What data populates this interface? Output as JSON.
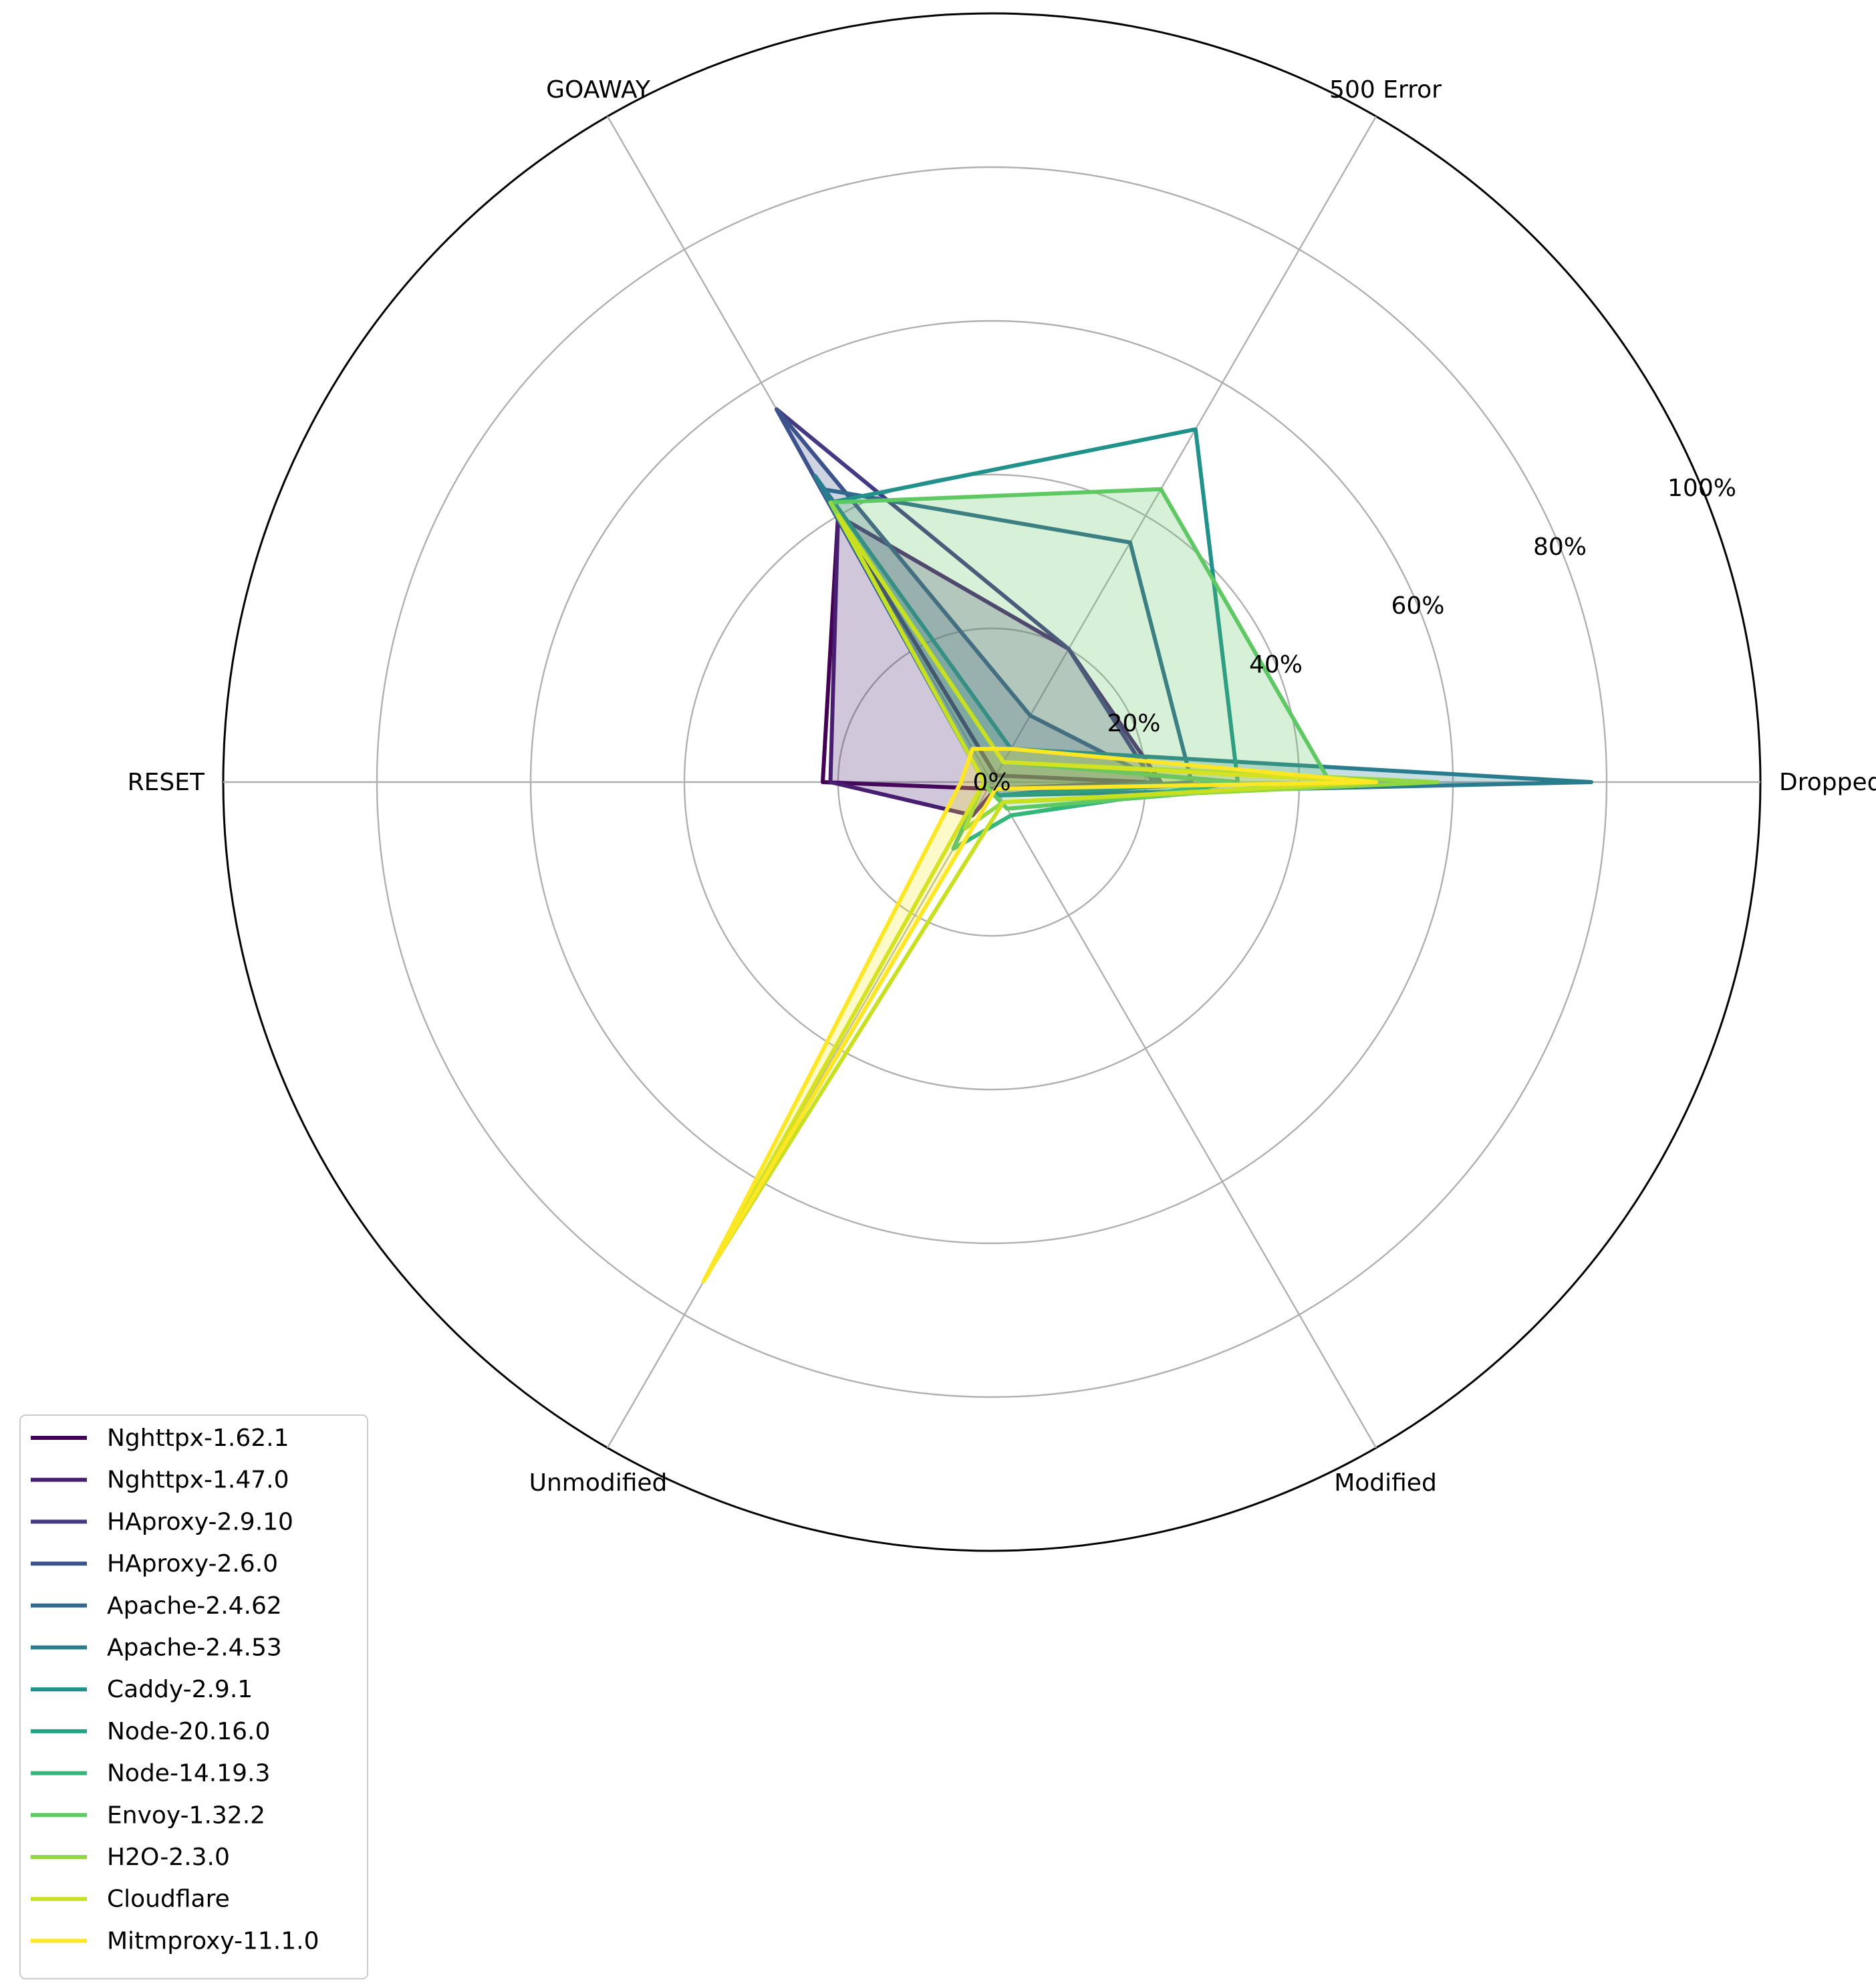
{
  "chart_data": {
    "type": "radar",
    "axes": [
      "Dropped",
      "500 Error",
      "GOAWAY",
      "RESET",
      "Unmodified",
      "Modified"
    ],
    "radial_ticks": [
      "0%",
      "20%",
      "40%",
      "60%",
      "80%",
      "100%"
    ],
    "radial_tick_values": [
      0,
      20,
      40,
      60,
      80,
      100
    ],
    "rlim": [
      0,
      100
    ],
    "grid": true,
    "legend_position": "lower-left",
    "series": [
      {
        "name": "Nghttpx-1.62.1",
        "color": "#440154",
        "values": [
          20,
          1,
          40,
          22,
          1,
          1
        ],
        "filled": false
      },
      {
        "name": "Nghttpx-1.47.0",
        "color": "#481f70",
        "values": [
          22,
          20,
          40,
          21,
          5,
          1
        ],
        "filled": true
      },
      {
        "name": "HAproxy-2.9.10",
        "color": "#443983",
        "values": [
          21,
          20,
          56,
          1,
          1,
          2
        ],
        "filled": false
      },
      {
        "name": "HAproxy-2.6.0",
        "color": "#3b528b",
        "values": [
          22,
          10,
          56,
          1,
          1,
          2
        ],
        "filled": true
      },
      {
        "name": "Apache-2.4.62",
        "color": "#31688e",
        "values": [
          26,
          36,
          44,
          1,
          1,
          2
        ],
        "filled": false
      },
      {
        "name": "Apache-2.4.53",
        "color": "#287c8e",
        "values": [
          78,
          5,
          46,
          1,
          1,
          2
        ],
        "filled": true
      },
      {
        "name": "Caddy-2.9.1",
        "color": "#21918c",
        "values": [
          32,
          53,
          42,
          1,
          1,
          2
        ],
        "filled": false
      },
      {
        "name": "Node-20.16.0",
        "color": "#20a486",
        "values": [
          32,
          3,
          42,
          1,
          10,
          5
        ],
        "filled": false
      },
      {
        "name": "Node-14.19.3",
        "color": "#35b779",
        "values": [
          31,
          3,
          42,
          1,
          10,
          5
        ],
        "filled": false
      },
      {
        "name": "Envoy-1.32.2",
        "color": "#5ec962",
        "values": [
          44,
          44,
          42,
          1,
          1,
          4
        ],
        "filled": true
      },
      {
        "name": "H2O-2.3.0",
        "color": "#90d743",
        "values": [
          58,
          3,
          42,
          1,
          7,
          3
        ],
        "filled": false
      },
      {
        "name": "Cloudflare",
        "color": "#c8e020",
        "values": [
          50,
          3,
          40,
          1,
          73,
          3
        ],
        "filled": false
      },
      {
        "name": "Mitmproxy-11.1.0",
        "color": "#fde725",
        "values": [
          50,
          5,
          5,
          4,
          75,
          1
        ],
        "filled": true
      }
    ]
  }
}
